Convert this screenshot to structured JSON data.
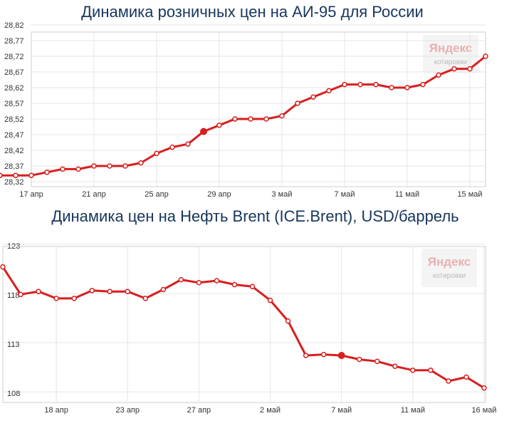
{
  "chart_data": [
    {
      "type": "line",
      "title": "Динамика розничных цен на АИ-95 для России",
      "watermark": {
        "brand": "Яндекс",
        "sub": "котировки"
      },
      "y_ticks": [
        "28,32",
        "28,37",
        "28,42",
        "28,47",
        "28,52",
        "28,57",
        "28,62",
        "28,67",
        "28,72",
        "28,77",
        "28,82"
      ],
      "y_tick_values": [
        28.32,
        28.37,
        28.42,
        28.47,
        28.52,
        28.57,
        28.62,
        28.67,
        28.72,
        28.77,
        28.82
      ],
      "ylim": [
        28.32,
        28.82
      ],
      "x_ticks": [
        "17 апр",
        "21 апр",
        "25 апр",
        "29 апр",
        "3 май",
        "7 май",
        "11 май",
        "15 май"
      ],
      "x_tick_index": [
        2,
        6,
        10,
        14,
        18,
        22,
        26,
        30
      ],
      "highlight_index": 13,
      "color": "#d81e1e",
      "values": [
        28.34,
        28.34,
        28.34,
        28.35,
        28.36,
        28.36,
        28.37,
        28.37,
        28.37,
        28.38,
        28.41,
        28.43,
        28.44,
        28.48,
        28.5,
        28.52,
        28.52,
        28.52,
        28.53,
        28.57,
        28.59,
        28.61,
        28.63,
        28.63,
        28.63,
        28.62,
        28.62,
        28.63,
        28.66,
        28.68,
        28.68,
        28.72
      ]
    },
    {
      "type": "line",
      "title": "Динамика цен на Нефть Brent (ICE.Brent), USD/баррель",
      "watermark": {
        "brand": "Яндекс",
        "sub": "котировки"
      },
      "y_ticks": [
        "108",
        "113",
        "118",
        "123"
      ],
      "y_tick_values": [
        108,
        113,
        118,
        123
      ],
      "ylim": [
        107.5,
        123.5
      ],
      "x_ticks": [
        "18 апр",
        "23 апр",
        "27 апр",
        "2 май",
        "7 май",
        "11 май",
        "16 май"
      ],
      "x_tick_index": [
        3,
        7,
        11,
        15,
        19,
        23,
        27
      ],
      "highlight_index": 19,
      "color": "#d81e1e",
      "values": [
        120.7,
        117.9,
        118.2,
        117.5,
        117.5,
        118.3,
        118.2,
        118.2,
        117.5,
        118.4,
        119.4,
        119.1,
        119.3,
        118.9,
        118.7,
        117.3,
        115.2,
        111.7,
        111.8,
        111.7,
        111.3,
        111.1,
        110.6,
        110.2,
        110.2,
        109.1,
        109.5,
        108.4
      ]
    }
  ]
}
